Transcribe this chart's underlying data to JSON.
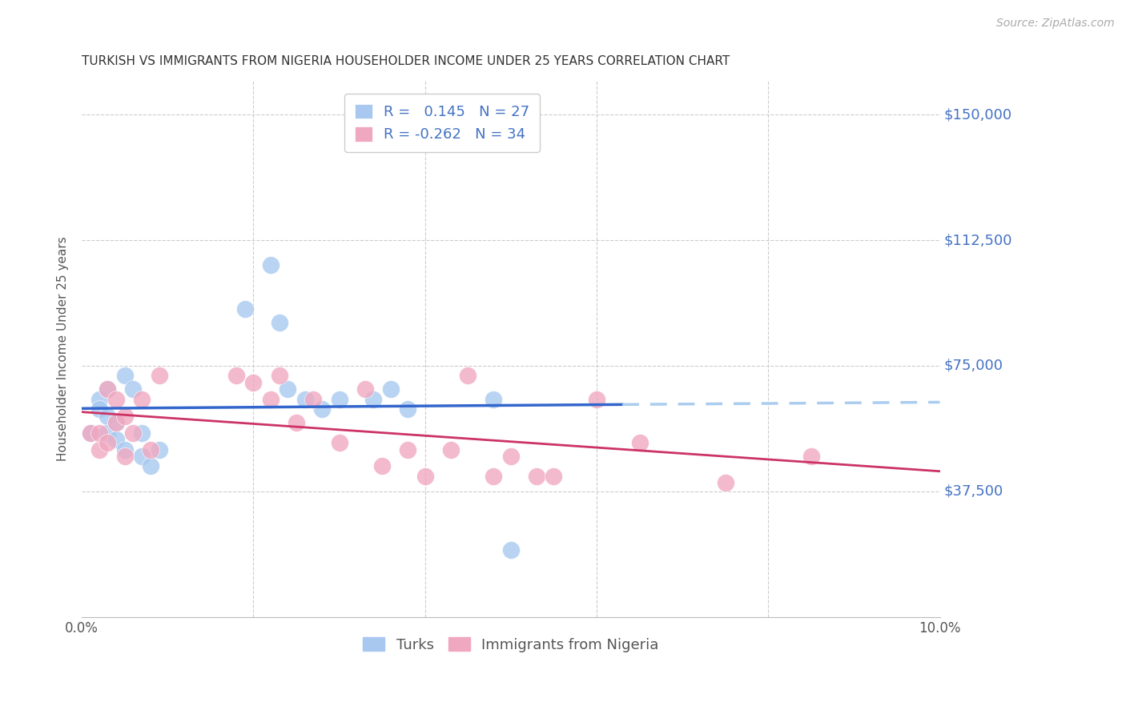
{
  "title": "TURKISH VS IMMIGRANTS FROM NIGERIA HOUSEHOLDER INCOME UNDER 25 YEARS CORRELATION CHART",
  "source": "Source: ZipAtlas.com",
  "ylabel": "Householder Income Under 25 years",
  "legend_turks": "Turks",
  "legend_nigeria": "Immigrants from Nigeria",
  "r_turks": 0.145,
  "n_turks": 27,
  "r_nigeria": -0.262,
  "n_nigeria": 34,
  "xlim": [
    0.0,
    0.1
  ],
  "ylim": [
    0,
    160000
  ],
  "color_turks": "#A8C8F0",
  "color_turks_edge": "#A8C8F0",
  "color_nigeria": "#F0A8C0",
  "color_nigeria_edge": "#F0A8C0",
  "color_trendline_turks": "#3366CC",
  "color_trendline_nigeria": "#CC3366",
  "color_dashed": "#AACCEE",
  "color_axis_labels": "#4472C4",
  "color_grid": "#CCCCCC",
  "color_text": "#333333",
  "turks_x": [
    0.001,
    0.002,
    0.002,
    0.003,
    0.003,
    0.003,
    0.004,
    0.004,
    0.005,
    0.005,
    0.006,
    0.007,
    0.007,
    0.008,
    0.009,
    0.019,
    0.022,
    0.023,
    0.024,
    0.026,
    0.028,
    0.03,
    0.034,
    0.036,
    0.038,
    0.048,
    0.05
  ],
  "turks_y": [
    55000,
    65000,
    62000,
    68000,
    60000,
    55000,
    58000,
    53000,
    72000,
    50000,
    68000,
    55000,
    48000,
    45000,
    50000,
    92000,
    105000,
    88000,
    68000,
    65000,
    62000,
    65000,
    65000,
    68000,
    62000,
    65000,
    20000
  ],
  "nigeria_x": [
    0.001,
    0.002,
    0.002,
    0.003,
    0.003,
    0.004,
    0.004,
    0.005,
    0.005,
    0.006,
    0.007,
    0.008,
    0.009,
    0.018,
    0.02,
    0.022,
    0.023,
    0.025,
    0.027,
    0.03,
    0.033,
    0.035,
    0.038,
    0.04,
    0.043,
    0.045,
    0.048,
    0.05,
    0.053,
    0.055,
    0.06,
    0.065,
    0.075,
    0.085
  ],
  "nigeria_y": [
    55000,
    50000,
    55000,
    68000,
    52000,
    65000,
    58000,
    60000,
    48000,
    55000,
    65000,
    50000,
    72000,
    72000,
    70000,
    65000,
    72000,
    58000,
    65000,
    52000,
    68000,
    45000,
    50000,
    42000,
    50000,
    72000,
    42000,
    48000,
    42000,
    42000,
    65000,
    52000,
    40000,
    48000
  ],
  "background_color": "#FFFFFF"
}
